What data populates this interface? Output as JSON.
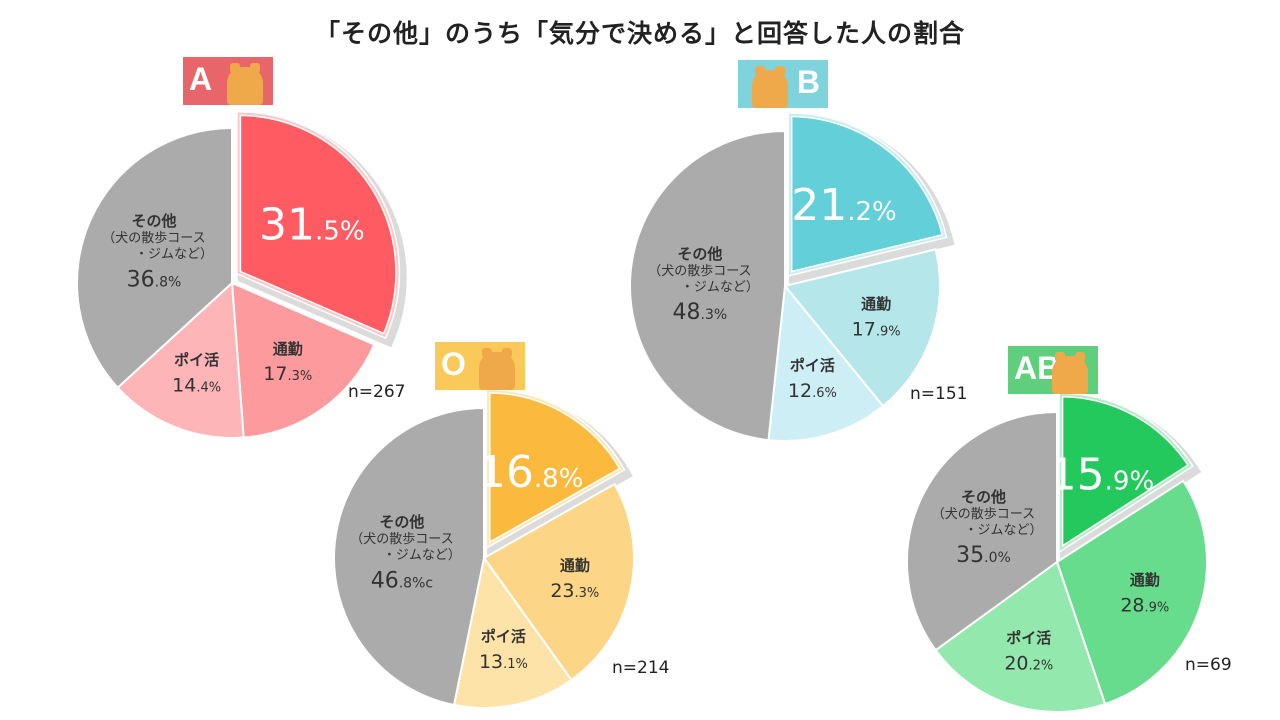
{
  "title": "「その他」のうち「気分で決める」と回答した人の割合",
  "chart_data": [
    {
      "type": "pie",
      "group": "A",
      "n_label": "n=267",
      "badge_color": "#e8666a",
      "slices": [
        {
          "label": "",
          "value": 31.5,
          "value_label": "31.5%",
          "color": "#fe5c62",
          "highlight": true
        },
        {
          "label": "通勤",
          "value": 17.3,
          "value_label": "17.3%",
          "color": "#fc9a9e"
        },
        {
          "label": "ポイ活",
          "value": 14.4,
          "value_label": "14.4%",
          "color": "#fdb5b8"
        },
        {
          "label": "その他\n（犬の散歩コース\n・ジムなど）",
          "value": 36.8,
          "value_label": "36.8%",
          "color": "#ababab"
        }
      ]
    },
    {
      "type": "pie",
      "group": "B",
      "n_label": "n=151",
      "badge_color": "#7fd3dc",
      "slices": [
        {
          "label": "",
          "value": 21.2,
          "value_label": "21.2%",
          "color": "#62cfd9",
          "highlight": true
        },
        {
          "label": "通勤",
          "value": 17.9,
          "value_label": "17.9%",
          "color": "#b4e6ea"
        },
        {
          "label": "ポイ活",
          "value": 12.6,
          "value_label": "12.6%",
          "color": "#cdeef5"
        },
        {
          "label": "その他\n（犬の散歩コース\n・ジムなど）",
          "value": 48.3,
          "value_label": "48.3%",
          "color": "#ababab"
        }
      ]
    },
    {
      "type": "pie",
      "group": "O",
      "n_label": "n=214",
      "badge_color": "#fbc85a",
      "slices": [
        {
          "label": "",
          "value": 16.8,
          "value_label": "16.8%",
          "color": "#fbb93d",
          "highlight": true
        },
        {
          "label": "通勤",
          "value": 23.3,
          "value_label": "23.3%",
          "color": "#fcd587"
        },
        {
          "label": "ポイ活",
          "value": 13.1,
          "value_label": "13.1%",
          "color": "#fde3a7"
        },
        {
          "label": "その他\n（犬の散歩コース\n・ジムなど）",
          "value": 46.8,
          "value_label": "46.8%c",
          "color": "#ababab"
        }
      ]
    },
    {
      "type": "pie",
      "group": "AB",
      "n_label": "n=69",
      "badge_color": "#5fcf7e",
      "slices": [
        {
          "label": "",
          "value": 15.9,
          "value_label": "15.9%",
          "color": "#24c95e",
          "highlight": true
        },
        {
          "label": "通勤",
          "value": 28.9,
          "value_label": "28.9%",
          "color": "#67dc8c"
        },
        {
          "label": "ポイ活",
          "value": 20.2,
          "value_label": "20.2%",
          "color": "#93e8ad"
        },
        {
          "label": "その他\n（犬の散歩コース\n・ジムなど）",
          "value": 35.0,
          "value_label": "35.0%",
          "color": "#ababab"
        }
      ]
    }
  ]
}
